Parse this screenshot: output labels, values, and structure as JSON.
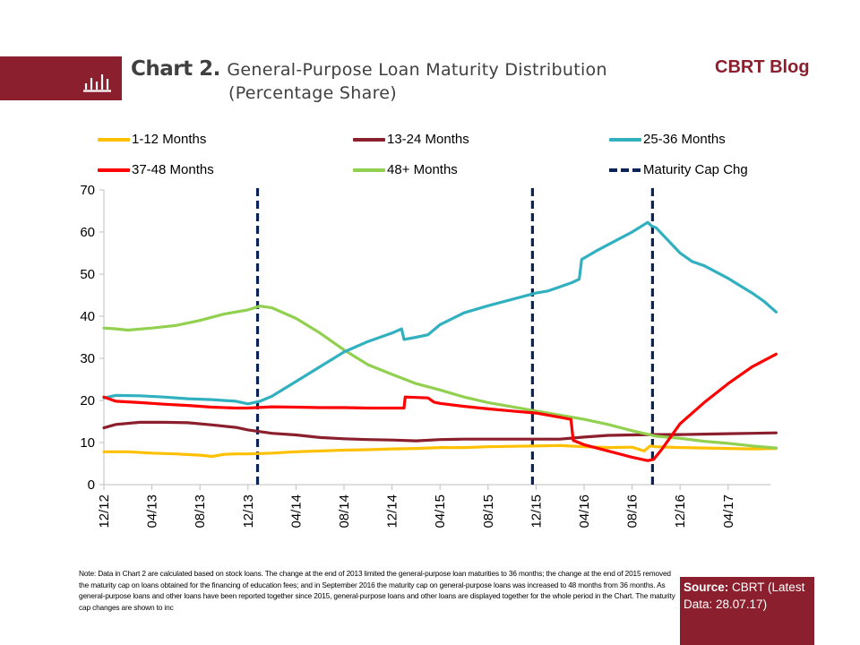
{
  "header": {
    "chart_number": "Chart 2.",
    "title_line1": "General-Purpose Loan Maturity Distribution",
    "title_line2": "(Percentage Share)",
    "brand": "CBRT Blog",
    "banner_icon": "bar-chart-icon"
  },
  "colors": {
    "brand": "#8b1f2d",
    "m1_12": "#ffc000",
    "m13_24": "#8b1f2d",
    "m25_36": "#31b0c0",
    "m37_48": "#ff0000",
    "m48p": "#92d050",
    "cap": "#0b2257",
    "axis": "#bfbfbf"
  },
  "legend": [
    {
      "label": "1-12 Months",
      "key": "m1_12"
    },
    {
      "label": "13-24 Months",
      "key": "m13_24"
    },
    {
      "label": "25-36 Months",
      "key": "m25_36"
    },
    {
      "label": "37-48 Months",
      "key": "m37_48"
    },
    {
      "label": "48+ Months",
      "key": "m48p"
    },
    {
      "label": "Maturity Cap Chg",
      "key": "cap"
    }
  ],
  "note": "Note: Data in Chart 2 are calculated based on stock loans. The change at the end of 2013 limited the general-purpose loan maturities to 36 months; the change at the end of 2015 removed the maturity cap on loans obtained for the financing of education fees; and in September 2016 the maturity cap on general-purpose loans was increased to 48 months from 36 months. As general-purpose loans and other loans have been reported together since 2015, general-purpose loans and other loans are displayed together for the whole period in the Chart. The maturity cap changes are shown to inc",
  "source": {
    "label": "Source:",
    "text": "CBRT (Latest Data: 28.07.17)"
  },
  "chart_data": {
    "type": "line",
    "title": "General-Purpose Loan Maturity Distribution (Percentage Share)",
    "xlabel": "",
    "ylabel": "",
    "ylim": [
      0,
      70
    ],
    "yticks": [
      0,
      10,
      20,
      30,
      40,
      50,
      60,
      70
    ],
    "x_start": "12/12",
    "x_unit": "month",
    "x_end_index": 56,
    "xtick_labels": [
      "12/12",
      "04/13",
      "08/13",
      "12/13",
      "04/14",
      "08/14",
      "12/14",
      "04/15",
      "08/15",
      "12/15",
      "04/16",
      "08/16",
      "12/16",
      "04/17"
    ],
    "xtick_indices": [
      0,
      4,
      8,
      12,
      16,
      20,
      24,
      28,
      32,
      36,
      40,
      44,
      48,
      52
    ],
    "grid": false,
    "legend_position": "top",
    "vertical_markers": [
      {
        "name": "Maturity Cap Chg",
        "x_index": 12.8
      },
      {
        "name": "Maturity Cap Chg",
        "x_index": 35.7
      },
      {
        "name": "Maturity Cap Chg",
        "x_index": 45.7
      }
    ],
    "series": [
      {
        "name": "1-12 Months",
        "key": "m1_12",
        "x": [
          0,
          2,
          4,
          6,
          8,
          9,
          10,
          11,
          12,
          14,
          16,
          18,
          20,
          22,
          24,
          26,
          28,
          30,
          32,
          34,
          36,
          38,
          40,
          42,
          44,
          45,
          45.5,
          46,
          48,
          50,
          52,
          54,
          56
        ],
        "y": [
          7.8,
          7.8,
          7.5,
          7.3,
          7.0,
          6.7,
          7.2,
          7.3,
          7.3,
          7.5,
          7.8,
          8.0,
          8.2,
          8.3,
          8.5,
          8.6,
          8.8,
          8.8,
          9.0,
          9.1,
          9.2,
          9.3,
          9.0,
          8.8,
          8.9,
          8.0,
          9.2,
          9.0,
          8.8,
          8.7,
          8.6,
          8.5,
          8.6
        ]
      },
      {
        "name": "13-24 Months",
        "key": "m13_24",
        "x": [
          0,
          1,
          3,
          5,
          7,
          9,
          11,
          12,
          14,
          16,
          18,
          20,
          22,
          24,
          26,
          28,
          30,
          32,
          34,
          36,
          38,
          40,
          42,
          44,
          46,
          48,
          50,
          52,
          54,
          56
        ],
        "y": [
          13.5,
          14.3,
          14.8,
          14.8,
          14.7,
          14.2,
          13.6,
          13.0,
          12.2,
          11.8,
          11.2,
          10.9,
          10.7,
          10.6,
          10.4,
          10.7,
          10.8,
          10.8,
          10.8,
          10.8,
          10.8,
          11.3,
          11.7,
          11.8,
          11.9,
          11.9,
          12.0,
          12.1,
          12.2,
          12.3
        ]
      },
      {
        "name": "25-36 Months",
        "key": "m25_36",
        "x": [
          0,
          1,
          3,
          5,
          7,
          9,
          11,
          12,
          13,
          14,
          16,
          18,
          20,
          22,
          24,
          24.8,
          25,
          26,
          27,
          28,
          30,
          32,
          34,
          36,
          37,
          38,
          39,
          39.6,
          39.8,
          41,
          43,
          44,
          45.3,
          45.6,
          46,
          47,
          48,
          49,
          50,
          52,
          54,
          55,
          56
        ],
        "y": [
          20.6,
          21.2,
          21.1,
          20.8,
          20.4,
          20.2,
          19.8,
          19.2,
          19.8,
          21.0,
          24.5,
          28.0,
          31.5,
          34.0,
          36.0,
          37.0,
          34.5,
          35.0,
          35.6,
          38.0,
          40.8,
          42.5,
          44.0,
          45.5,
          46.0,
          47.0,
          48.0,
          48.8,
          53.5,
          55.5,
          58.5,
          60.0,
          62.3,
          61.5,
          61.0,
          58.0,
          55.0,
          53.0,
          52.0,
          49.0,
          45.5,
          43.5,
          41.0
        ]
      },
      {
        "name": "37-48 Months",
        "key": "m37_48",
        "x": [
          0,
          1,
          3,
          5,
          7,
          9,
          11,
          12,
          14,
          16,
          18,
          20,
          22,
          24,
          25,
          25.1,
          27,
          27.5,
          28,
          30,
          32,
          34,
          36,
          38,
          38.9,
          39.1,
          40,
          42,
          44,
          45.3,
          45.8,
          46.5,
          48,
          50,
          52,
          54,
          56
        ],
        "y": [
          20.8,
          19.8,
          19.5,
          19.1,
          18.8,
          18.4,
          18.2,
          18.2,
          18.5,
          18.4,
          18.3,
          18.3,
          18.2,
          18.2,
          18.2,
          20.8,
          20.6,
          19.6,
          19.3,
          18.6,
          18.0,
          17.5,
          17.0,
          16.0,
          15.5,
          10.5,
          9.5,
          8.0,
          6.5,
          5.7,
          6.0,
          8.5,
          14.5,
          19.5,
          24.0,
          28.0,
          31.0
        ]
      },
      {
        "name": "48+ Months",
        "key": "m48p",
        "x": [
          0,
          1,
          2,
          4,
          6,
          8,
          10,
          12,
          13,
          14,
          16,
          18,
          20,
          22,
          24,
          26,
          28,
          30,
          32,
          34,
          36,
          38,
          40,
          42,
          44,
          46,
          48,
          50,
          52,
          54,
          56
        ],
        "y": [
          37.2,
          37.0,
          36.7,
          37.2,
          37.8,
          39.0,
          40.5,
          41.5,
          42.4,
          42.0,
          39.5,
          36.0,
          32.0,
          28.5,
          26.2,
          24.0,
          22.5,
          20.8,
          19.5,
          18.5,
          17.5,
          16.5,
          15.5,
          14.3,
          12.8,
          11.5,
          11.0,
          10.3,
          9.8,
          9.2,
          8.7
        ]
      }
    ]
  }
}
